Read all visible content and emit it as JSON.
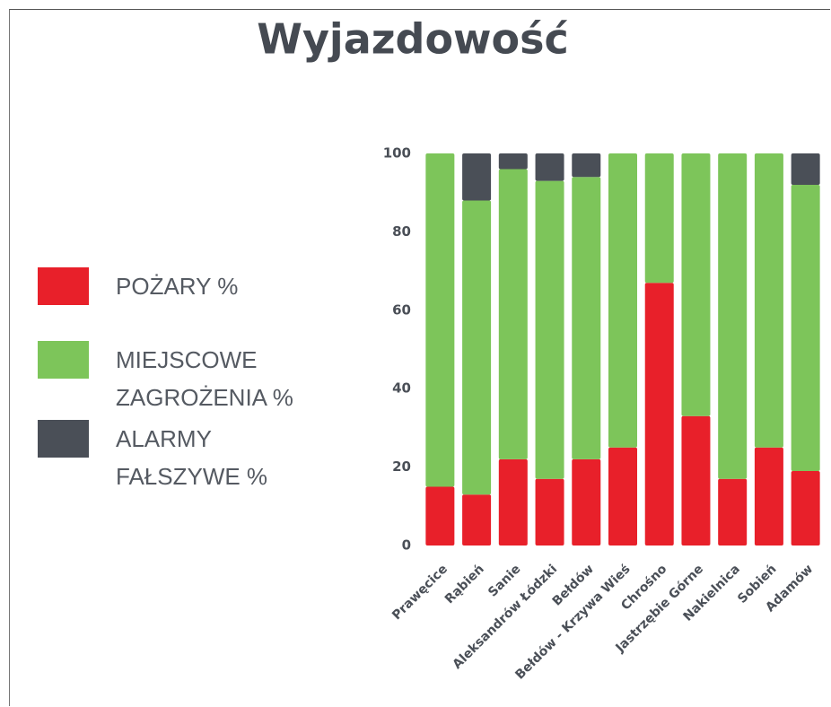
{
  "chart_data": {
    "type": "stacked_bar",
    "title": "Wyjazdowość",
    "categories": [
      "Prawęcice",
      "Rąbień",
      "Sanie",
      "Aleksandrów Łódzki",
      "Bełdów",
      "Bełdów - Krzywa Wieś",
      "Chrośno",
      "Jastrzębie Górne",
      "Nakielnica",
      "Sobień",
      "Adamów"
    ],
    "series": [
      {
        "name": "POŻARY %",
        "color": "#e8202a",
        "values": [
          15,
          13,
          22,
          17,
          22,
          25,
          67,
          33,
          17,
          25,
          19
        ]
      },
      {
        "name": "MIEJSCOWE ZAGROŻENIA %",
        "color": "#7dc55a",
        "values": [
          85,
          75,
          74,
          76,
          72,
          75,
          33,
          67,
          83,
          75,
          73
        ]
      },
      {
        "name": "ALARMY FAŁSZYWE %",
        "color": "#4a4f57",
        "values": [
          0,
          12,
          4,
          7,
          6,
          0,
          0,
          0,
          0,
          0,
          8
        ]
      }
    ],
    "ylim": [
      0,
      100
    ],
    "yticks": [
      0,
      20,
      40,
      60,
      80,
      100
    ],
    "grid": false,
    "legend": "left"
  }
}
